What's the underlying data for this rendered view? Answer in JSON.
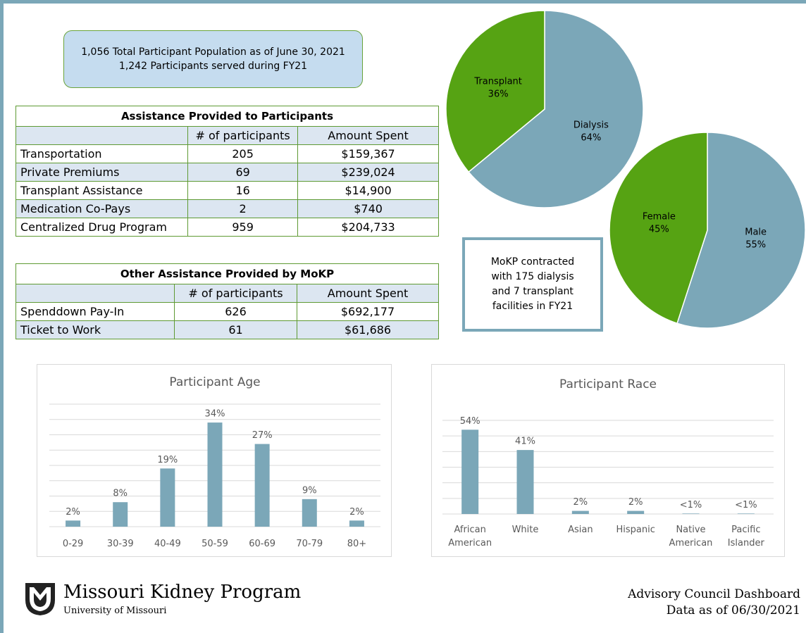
{
  "info_box": {
    "lines": [
      "1,056 Total Participant Population as of June 30, 2021",
      "1,242 Participants served during FY21"
    ]
  },
  "tables": [
    {
      "title": "Assistance Provided to Participants",
      "columns": [
        "# of participants",
        "Amount Spent"
      ],
      "rows": [
        [
          "Transportation",
          "205",
          "$159,367"
        ],
        [
          "Private Premiums",
          "69",
          "$239,024"
        ],
        [
          "Transplant Assistance",
          "16",
          "$14,900"
        ],
        [
          "Medication Co-Pays",
          "2",
          "$740"
        ],
        [
          "Centralized Drug Program",
          "959",
          "$204,733"
        ]
      ]
    },
    {
      "title": "Other Assistance Provided by MoKP",
      "columns": [
        "# of participants",
        "Amount Spent"
      ],
      "rows": [
        [
          "Spenddown Pay-In",
          "626",
          "$692,177"
        ],
        [
          "Ticket to Work",
          "61",
          "$61,686"
        ]
      ]
    }
  ],
  "callout": {
    "lines": [
      "MoKP contracted",
      "with 175 dialysis",
      "and 7 transplant",
      "facilities in FY21"
    ]
  },
  "chart_data": [
    {
      "type": "pie",
      "categories": [
        "Dialysis",
        "Transplant"
      ],
      "values": [
        64,
        36
      ],
      "value_labels": [
        "64%",
        "36%"
      ],
      "colors": [
        "#7ba7b8",
        "#56a313"
      ]
    },
    {
      "type": "pie",
      "categories": [
        "Male",
        "Female"
      ],
      "values": [
        55,
        45
      ],
      "value_labels": [
        "55%",
        "45%"
      ],
      "colors": [
        "#7ba7b8",
        "#56a313"
      ]
    },
    {
      "type": "bar",
      "title": "Participant Age",
      "categories": [
        "0-29",
        "30-39",
        "40-49",
        "50-59",
        "60-69",
        "70-79",
        "80+"
      ],
      "values": [
        2,
        8,
        19,
        34,
        27,
        9,
        2
      ],
      "value_labels": [
        "2%",
        "8%",
        "19%",
        "34%",
        "27%",
        "9%",
        "2%"
      ],
      "color": "#7ba7b8",
      "ylim": [
        0,
        40
      ],
      "yticks": [
        0,
        5,
        10,
        15,
        20,
        25,
        30,
        35,
        40
      ],
      "grid": true
    },
    {
      "type": "bar",
      "title": "Participant Race",
      "categories": [
        "African American",
        "White",
        "Asian",
        "Hispanic",
        "Native American",
        "Pacific Islander"
      ],
      "values": [
        54,
        41,
        2,
        2,
        0.3,
        0.3
      ],
      "value_labels": [
        "54%",
        "41%",
        "2%",
        "2%",
        "<1%",
        "<1%"
      ],
      "color": "#7ba7b8",
      "ylim": [
        0,
        60
      ],
      "yticks": [
        0,
        10,
        20,
        30,
        40,
        50,
        60
      ],
      "grid": true
    }
  ],
  "footer": {
    "organization": "Missouri Kidney Program",
    "university": "University of Missouri",
    "report": "Advisory Council Dashboard",
    "date_note": "Data as of 06/30/2021"
  }
}
